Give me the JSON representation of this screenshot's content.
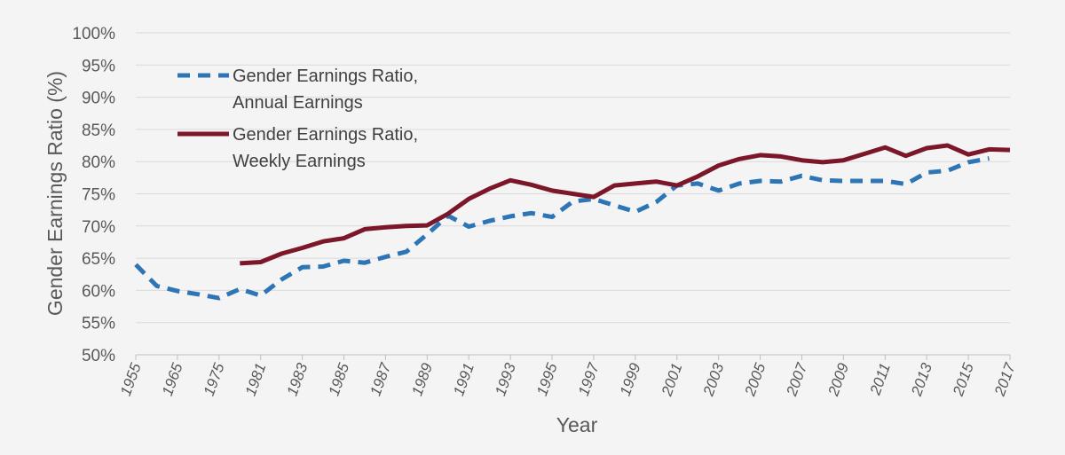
{
  "chart_data": {
    "type": "line",
    "xlabel": "Year",
    "ylabel": "Gender Earnings Ratio (%)",
    "x_tick_labels": [
      "1955",
      "1965",
      "1975",
      "1981",
      "1983",
      "1985",
      "1987",
      "1989",
      "1991",
      "1993",
      "1995",
      "1997",
      "1999",
      "2001",
      "2003",
      "2005",
      "2007",
      "2009",
      "2011",
      "2013",
      "2015",
      "2017"
    ],
    "y_tick_labels": [
      "50%",
      "55%",
      "60%",
      "65%",
      "70%",
      "75%",
      "80%",
      "85%",
      "90%",
      "95%",
      "100%"
    ],
    "ylim": [
      50,
      100
    ],
    "grid": true,
    "legend_position": "top-left",
    "categories": [
      "1955",
      "1960",
      "1965",
      "1970",
      "1975",
      "1980",
      "1981",
      "1982",
      "1983",
      "1984",
      "1985",
      "1986",
      "1987",
      "1988",
      "1989",
      "1990",
      "1991",
      "1992",
      "1993",
      "1994",
      "1995",
      "1996",
      "1997",
      "1998",
      "1999",
      "2000",
      "2001",
      "2002",
      "2003",
      "2004",
      "2005",
      "2006",
      "2007",
      "2008",
      "2009",
      "2010",
      "2011",
      "2012",
      "2013",
      "2014",
      "2015",
      "2016",
      "2017"
    ],
    "series": [
      {
        "name": "Gender Earnings Ratio, Annual Earnings",
        "color": "#2e75b6",
        "style": "dashed",
        "values": [
          64.0,
          60.7,
          59.9,
          59.4,
          58.8,
          60.2,
          59.2,
          61.7,
          63.6,
          63.7,
          64.6,
          64.3,
          65.2,
          66.0,
          68.7,
          71.6,
          69.9,
          70.8,
          71.5,
          72.0,
          71.4,
          73.8,
          74.2,
          73.2,
          72.2,
          73.7,
          76.3,
          76.6,
          75.5,
          76.6,
          77.0,
          76.9,
          77.8,
          77.1,
          77.0,
          77.0,
          77.0,
          76.5,
          78.3,
          78.6,
          79.9,
          80.5,
          null
        ]
      },
      {
        "name": "Gender Earnings Ratio, Weekly Earnings",
        "color": "#7b1728",
        "style": "solid",
        "values": [
          null,
          null,
          null,
          null,
          null,
          64.2,
          64.4,
          65.7,
          66.6,
          67.6,
          68.1,
          69.5,
          69.8,
          70.0,
          70.1,
          71.9,
          74.2,
          75.8,
          77.1,
          76.4,
          75.5,
          75.0,
          74.5,
          76.3,
          76.6,
          76.9,
          76.3,
          77.7,
          79.4,
          80.4,
          81.0,
          80.8,
          80.2,
          79.9,
          80.2,
          81.2,
          82.2,
          80.9,
          82.1,
          82.5,
          81.1,
          81.9,
          81.8
        ]
      }
    ]
  }
}
